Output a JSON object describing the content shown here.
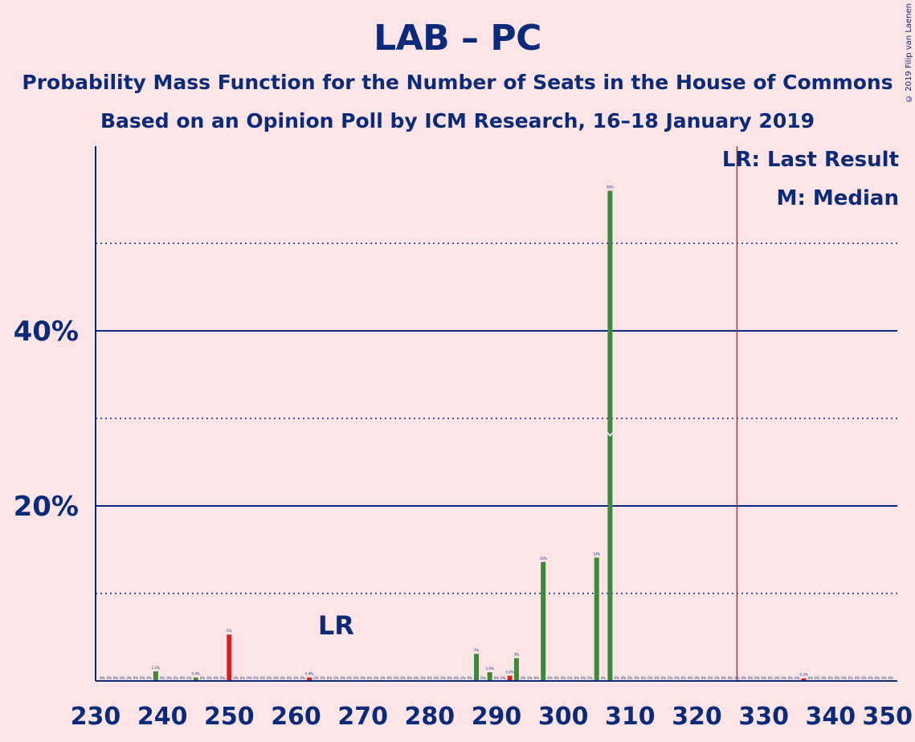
{
  "title": "LAB – PC",
  "subtitle1": "Probability Mass Function for the Number of Seats in the House of Commons",
  "subtitle2": "Based on an Opinion Poll by ICM Research, 16–18 January 2019",
  "copyright": "© 2019 Filip van Laenen",
  "legend": {
    "lr": "LR: Last Result",
    "median": "M: Median"
  },
  "lr_marker_text": "LR",
  "colors": {
    "background": "#fde4e7",
    "text": "#0b2a7a",
    "green": "#3a8a3a",
    "red": "#d42020",
    "majority_line": "#d42020"
  },
  "chart_data": {
    "type": "bar",
    "x_range": [
      230,
      350
    ],
    "ylim": [
      0,
      60
    ],
    "y_major_ticks": [
      20,
      40
    ],
    "y_major_tick_labels": [
      "20%",
      "40%"
    ],
    "y_minor_gridlines": [
      10,
      30,
      50
    ],
    "x_ticks": [
      230,
      240,
      250,
      260,
      270,
      280,
      290,
      300,
      310,
      320,
      330,
      340,
      350
    ],
    "last_result": 262,
    "median": 307,
    "majority_line": 326,
    "bars": [
      {
        "seat": 239,
        "value": 1.1,
        "label": "1.1%",
        "color": "green"
      },
      {
        "seat": 245,
        "value": 0.4,
        "label": "0.4%",
        "color": "green"
      },
      {
        "seat": 250,
        "value": 5.3,
        "label": "5%",
        "color": "red"
      },
      {
        "seat": 262,
        "value": 0.4,
        "label": "0.4%",
        "color": "red"
      },
      {
        "seat": 287,
        "value": 3.1,
        "label": "3%",
        "color": "green"
      },
      {
        "seat": 289,
        "value": 1.0,
        "label": "1.0%",
        "color": "green"
      },
      {
        "seat": 292,
        "value": 0.6,
        "label": "0.6%",
        "color": "red"
      },
      {
        "seat": 293,
        "value": 2.6,
        "label": "3%",
        "color": "green"
      },
      {
        "seat": 297,
        "value": 13.6,
        "label": "14%",
        "color": "green"
      },
      {
        "seat": 305,
        "value": 14.1,
        "label": "14%",
        "color": "green"
      },
      {
        "seat": 307,
        "value": 56.0,
        "label": "56%",
        "color": "green"
      },
      {
        "seat": 336,
        "value": 0.3,
        "label": "0.3%",
        "color": "red"
      }
    ]
  }
}
